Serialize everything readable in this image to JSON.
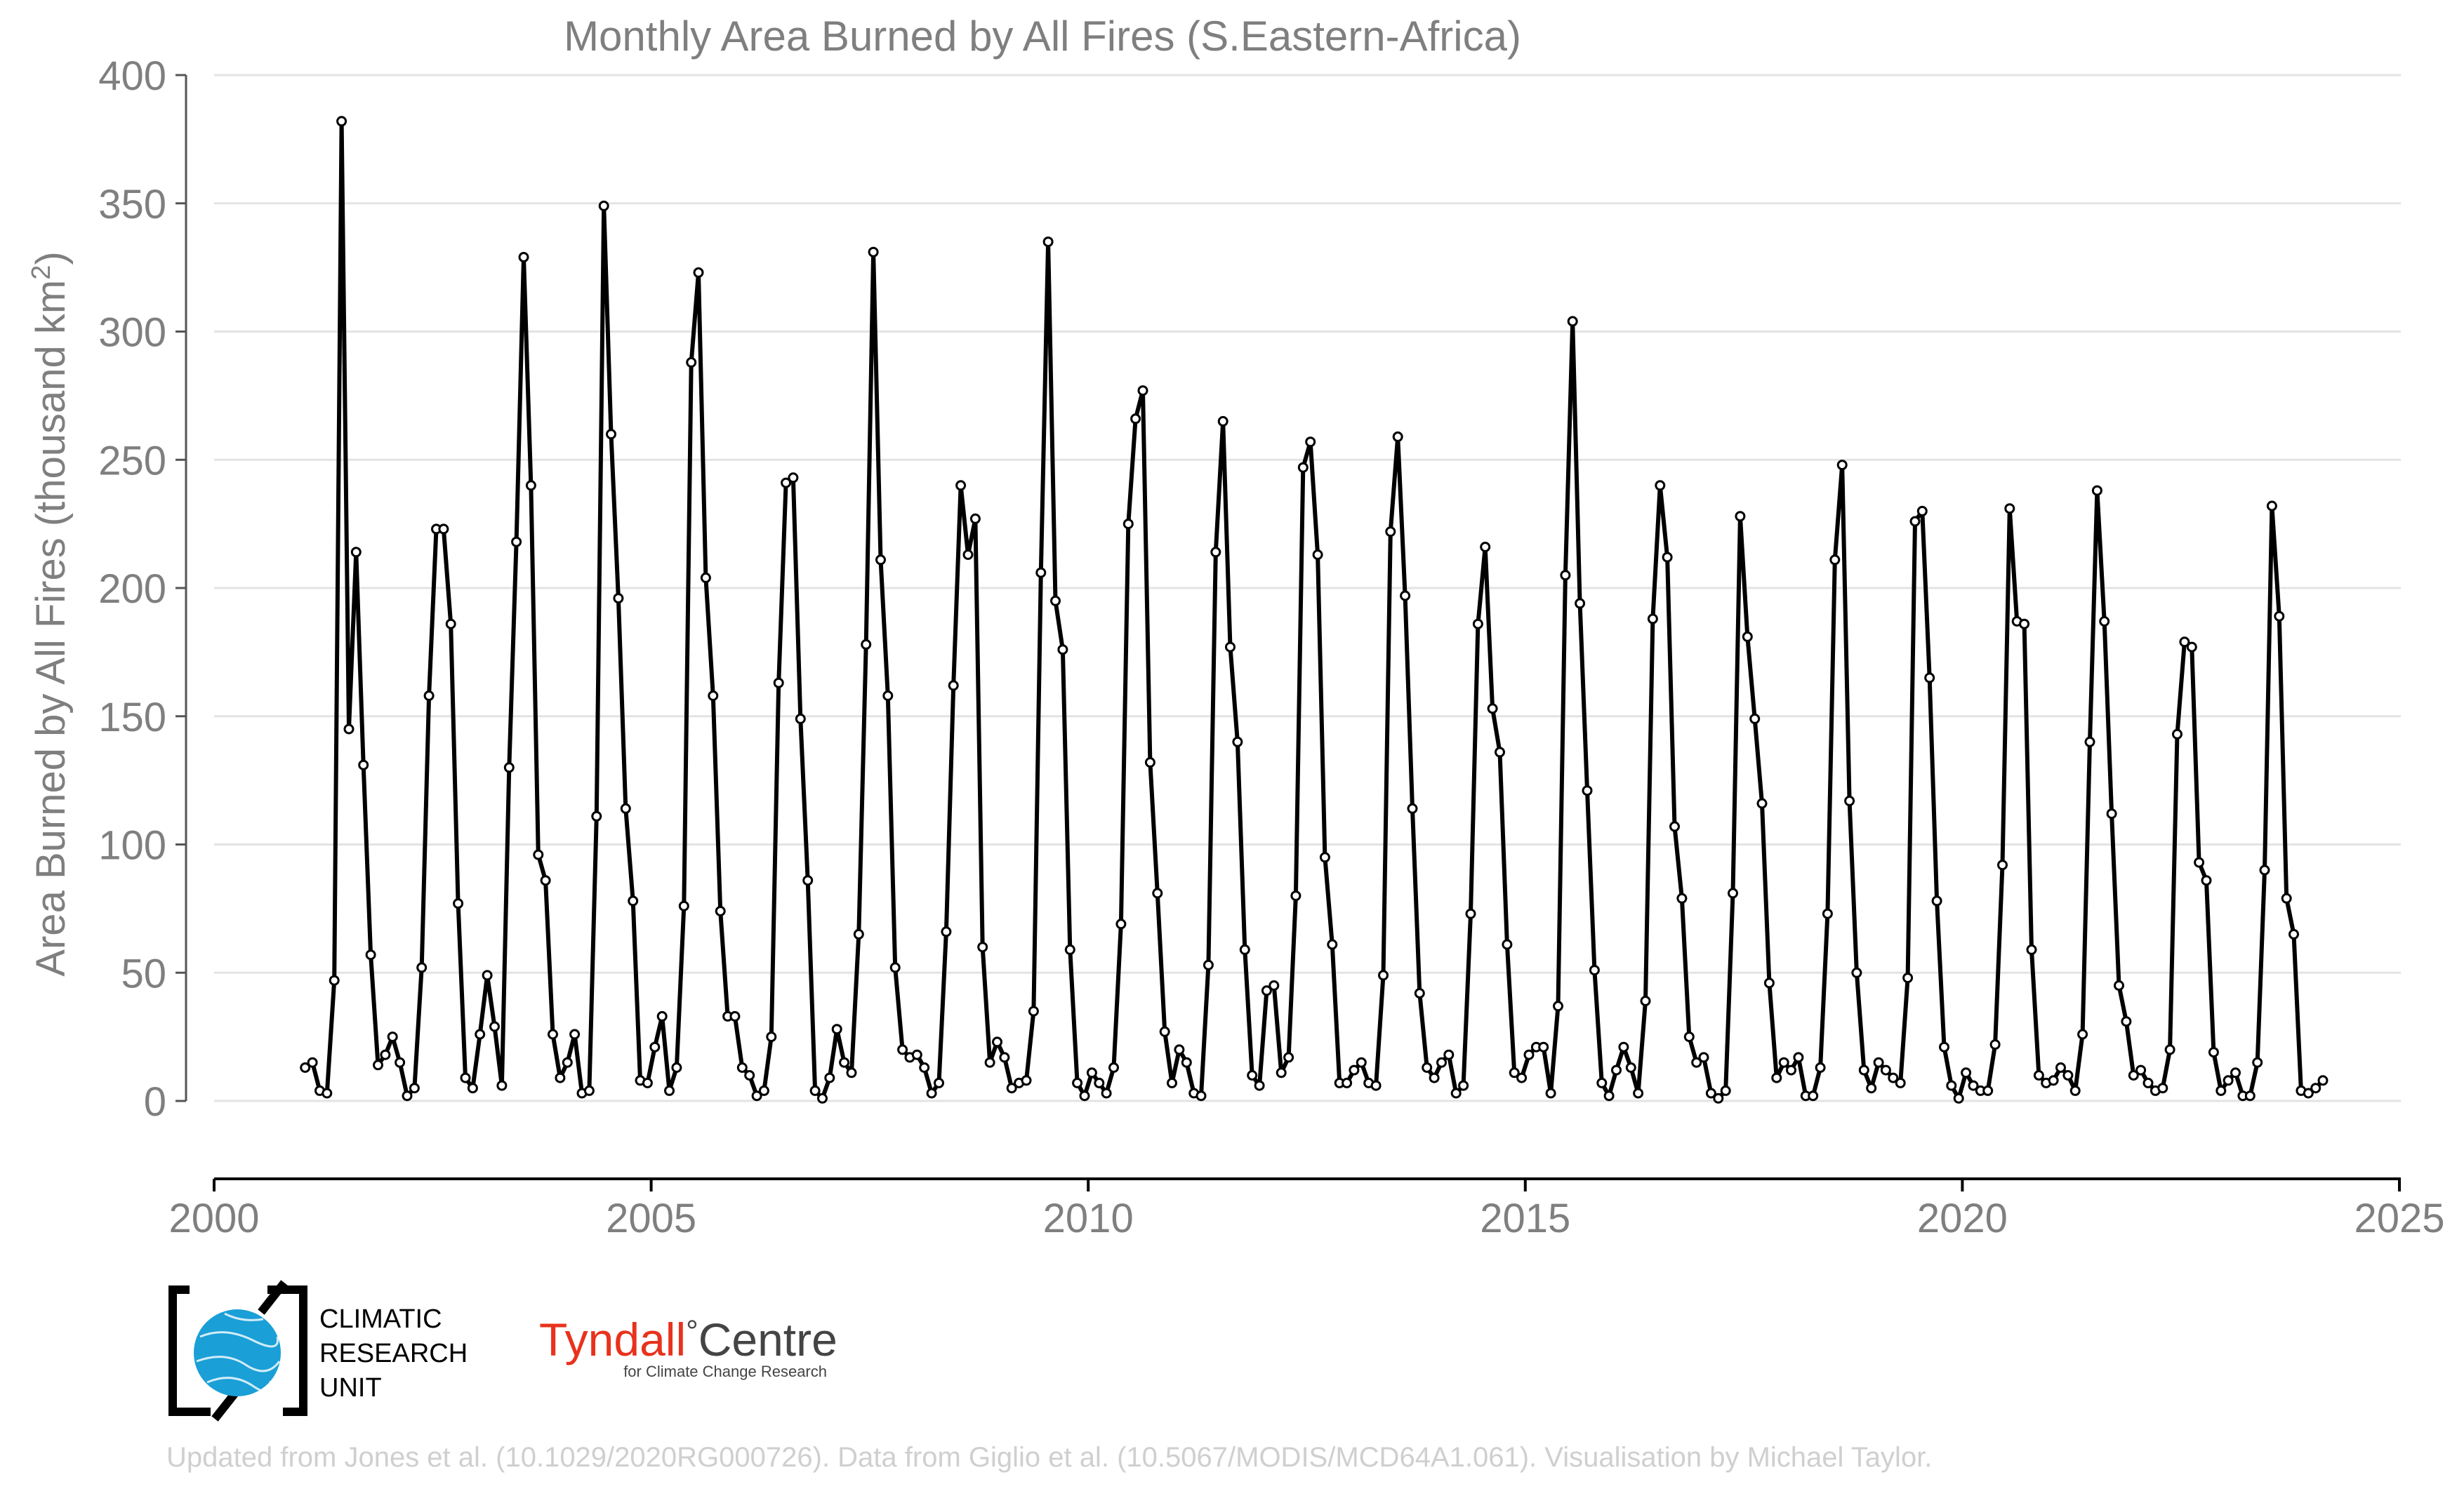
{
  "chart_data": {
    "type": "line",
    "title": "Monthly Area Burned by All Fires (S.Eastern-Africa)",
    "xlabel": "",
    "ylabel": "Area Burned by All Fires (thousand km",
    "ylabel_superscript": "2",
    "ylabel_suffix": ")",
    "xlim": [
      2000,
      2025
    ],
    "ylim": [
      0,
      400
    ],
    "x_ticks": [
      2000,
      2005,
      2010,
      2015,
      2020,
      2025
    ],
    "y_ticks": [
      0,
      50,
      100,
      150,
      200,
      250,
      300,
      350,
      400
    ],
    "grid": "horizontal",
    "legend": "none",
    "line_color": "#000000",
    "marker_fill": "#ffffff",
    "x_start": "2001-01",
    "x_step": "monthly",
    "series": [
      {
        "values": [
          13,
          15,
          4,
          3,
          47,
          382,
          145,
          214,
          131,
          57,
          14,
          18,
          25,
          15,
          2,
          5,
          52,
          158,
          223,
          223,
          186,
          77,
          9,
          5,
          26,
          49,
          29,
          6,
          130,
          218,
          329,
          240,
          96,
          86,
          26,
          9,
          15,
          26,
          3,
          4,
          111,
          349,
          260,
          196,
          114,
          78,
          8,
          7,
          21,
          33,
          4,
          13,
          76,
          288,
          323,
          204,
          158,
          74,
          33,
          33,
          13,
          10,
          2,
          4,
          25,
          163,
          241,
          243,
          149,
          86,
          4,
          1,
          9,
          28,
          15,
          11,
          65,
          178,
          331,
          211,
          158,
          52,
          20,
          17,
          18,
          13,
          3,
          7,
          66,
          162,
          240,
          213,
          227,
          60,
          15,
          23,
          17,
          5,
          7,
          8,
          35,
          206,
          335,
          195,
          176,
          59,
          7,
          2,
          11,
          7,
          3,
          13,
          69,
          225,
          266,
          277,
          132,
          81,
          27,
          7,
          20,
          15,
          3,
          2,
          53,
          214,
          265,
          177,
          140,
          59,
          10,
          6,
          43,
          45,
          11,
          17,
          80,
          247,
          257,
          213,
          95,
          61,
          7,
          7,
          12,
          15,
          7,
          6,
          49,
          222,
          259,
          197,
          114,
          42,
          13,
          9,
          15,
          18,
          3,
          6,
          73,
          186,
          216,
          153,
          136,
          61,
          11,
          9,
          18,
          21,
          21,
          3,
          37,
          205,
          304,
          194,
          121,
          51,
          7,
          2,
          12,
          21,
          13,
          3,
          39,
          188,
          240,
          212,
          107,
          79,
          25,
          15,
          17,
          3,
          1,
          4,
          81,
          228,
          181,
          149,
          116,
          46,
          9,
          15,
          12,
          17,
          2,
          2,
          13,
          73,
          211,
          248,
          117,
          50,
          12,
          5,
          15,
          12,
          9,
          7,
          48,
          226,
          230,
          165,
          78,
          21,
          6,
          1,
          11,
          6,
          4,
          4,
          22,
          92,
          231,
          187,
          186,
          59,
          10,
          7,
          8,
          13,
          10,
          4,
          26,
          140,
          238,
          187,
          112,
          45,
          31,
          10,
          12,
          7,
          4,
          5,
          20,
          143,
          179,
          177,
          93,
          86,
          19,
          4,
          8,
          11,
          2,
          2,
          15,
          90,
          232,
          189,
          79,
          65,
          4,
          3,
          5,
          8
        ]
      }
    ]
  },
  "credits": {
    "cru_line1": "CLIMATIC",
    "cru_line2": "RESEARCH",
    "cru_line3": "UNIT",
    "tyndall_main": "Tyndall",
    "tyndall_degree": "°",
    "tyndall_centre": "Centre",
    "tyndall_sub": "for Climate Change Research",
    "footnote": "Updated from Jones et al. (10.1029/2020RG000726). Data from Giglio et al. (10.5067/MODIS/MCD64A1.061). Visualisation by Michael Taylor."
  },
  "colors": {
    "text_gray": "#7f7f7f",
    "footnote_gray": "#cfcfcf",
    "grid": "#e3e3e3",
    "cru_blue": "#1a9fd7",
    "tyndall_red": "#e8321c"
  }
}
